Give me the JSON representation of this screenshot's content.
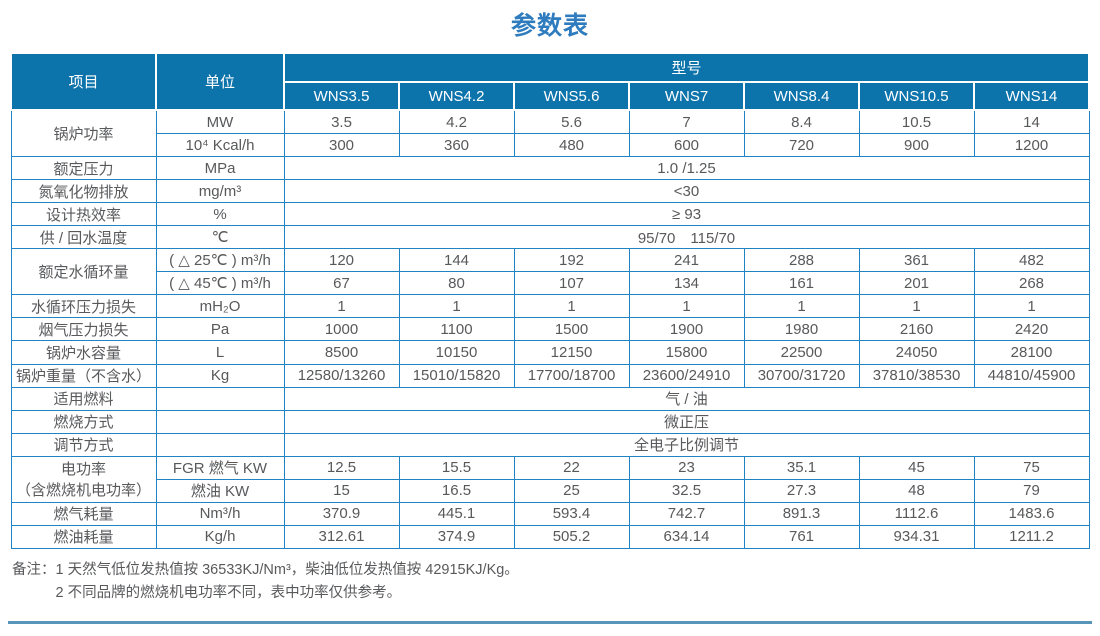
{
  "title": "参数表",
  "colors": {
    "header_bg": "#0d73ab",
    "table_border": "#2083c4",
    "title_text": "#2e7cbe",
    "body_text": "#58595b",
    "bottom_rule": "#5796b8"
  },
  "table": {
    "header": {
      "item": "项目",
      "unit": "单位",
      "model_group": "型号",
      "models": [
        "WNS3.5",
        "WNS4.2",
        "WNS5.6",
        "WNS7",
        "WNS8.4",
        "WNS10.5",
        "WNS14"
      ]
    },
    "rows": [
      {
        "item": "锅炉功率",
        "item_rowspan": 2,
        "unit": "MW",
        "values": [
          "3.5",
          "4.2",
          "5.6",
          "7",
          "8.4",
          "10.5",
          "14"
        ]
      },
      {
        "unit": "10⁴ Kcal/h",
        "values": [
          "300",
          "360",
          "480",
          "600",
          "720",
          "900",
          "1200"
        ]
      },
      {
        "item": "额定压力",
        "unit": "MPa",
        "span": "1.0 /1.25"
      },
      {
        "item": "氮氧化物排放",
        "unit": "mg/m³",
        "span": "<30"
      },
      {
        "item": "设计热效率",
        "unit": "%",
        "span": "≥ 93"
      },
      {
        "item": "供 / 回水温度",
        "unit": "℃",
        "span": "95/70　115/70"
      },
      {
        "item": "额定水循环量",
        "item_rowspan": 2,
        "unit": "( △ 25℃ ) m³/h",
        "values": [
          "120",
          "144",
          "192",
          "241",
          "288",
          "361",
          "482"
        ]
      },
      {
        "unit": "( △ 45℃ ) m³/h",
        "values": [
          "67",
          "80",
          "107",
          "134",
          "161",
          "201",
          "268"
        ]
      },
      {
        "item": "水循环压力损失",
        "unit": "mH₂O",
        "values": [
          "1",
          "1",
          "1",
          "1",
          "1",
          "1",
          "1"
        ]
      },
      {
        "item": "烟气压力损失",
        "unit": "Pa",
        "values": [
          "1000",
          "1100",
          "1500",
          "1900",
          "1980",
          "2160",
          "2420"
        ]
      },
      {
        "item": "锅炉水容量",
        "unit": "L",
        "values": [
          "8500",
          "10150",
          "12150",
          "15800",
          "22500",
          "24050",
          "28100"
        ]
      },
      {
        "item": "锅炉重量（不含水）",
        "unit": "Kg",
        "values": [
          "12580/13260",
          "15010/15820",
          "17700/18700",
          "23600/24910",
          "30700/31720",
          "37810/38530",
          "44810/45900"
        ]
      },
      {
        "item": "适用燃料",
        "unit": "",
        "span": "气 / 油"
      },
      {
        "item": "燃烧方式",
        "unit": "",
        "span": "微正压"
      },
      {
        "item": "调节方式",
        "unit": "",
        "span": "全电子比例调节"
      },
      {
        "item": "电功率\n（含燃烧机电功率）",
        "item_rowspan": 2,
        "unit": "FGR 燃气 KW",
        "values": [
          "12.5",
          "15.5",
          "22",
          "23",
          "35.1",
          "45",
          "75"
        ]
      },
      {
        "unit": "燃油 KW",
        "values": [
          "15",
          "16.5",
          "25",
          "32.5",
          "27.3",
          "48",
          "79"
        ]
      },
      {
        "item": "燃气耗量",
        "unit": "Nm³/h",
        "values": [
          "370.9",
          "445.1",
          "593.4",
          "742.7",
          "891.3",
          "1112.6",
          "1483.6"
        ]
      },
      {
        "item": "燃油耗量",
        "unit": "Kg/h",
        "values": [
          "312.61",
          "374.9",
          "505.2",
          "634.14",
          "761",
          "934.31",
          "1211.2"
        ]
      }
    ]
  },
  "notes": {
    "label": "备注：",
    "items": [
      "1  天然气低位发热值按 36533KJ/Nm³，柴油低位发热值按 42915KJ/Kg。",
      "2  不同品牌的燃烧机电功率不同，表中功率仅供参考。"
    ]
  }
}
